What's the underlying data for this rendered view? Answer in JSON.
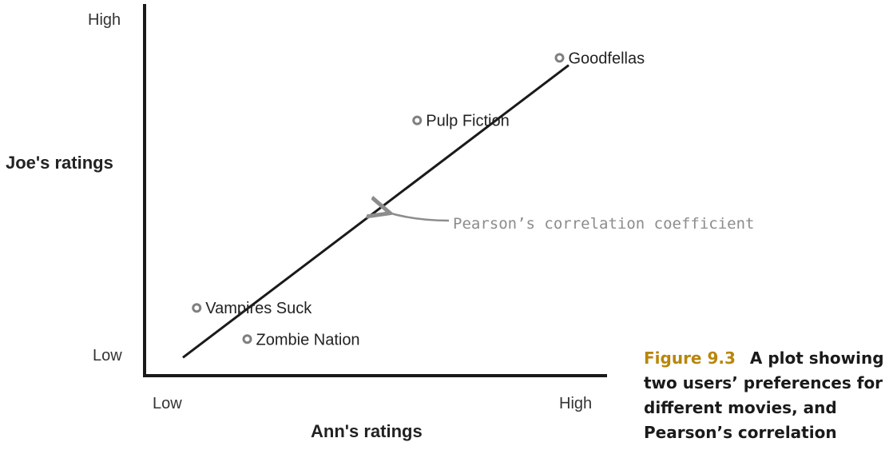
{
  "chart_data": {
    "type": "scatter",
    "xlabel": "Ann's ratings",
    "ylabel": "Joe's ratings",
    "x_ticks": [
      "Low",
      "High"
    ],
    "y_ticks": [
      "Low",
      "High"
    ],
    "xlim": [
      0,
      10
    ],
    "ylim": [
      0,
      10
    ],
    "points": [
      {
        "label": "Vampires Suck",
        "x": 1.1,
        "y": 1.8
      },
      {
        "label": "Zombie Nation",
        "x": 2.2,
        "y": 0.95
      },
      {
        "label": "Pulp Fiction",
        "x": 5.9,
        "y": 6.9
      },
      {
        "label": "Goodfellas",
        "x": 9.0,
        "y": 8.6
      }
    ],
    "trend_line": {
      "from": [
        0.8,
        0.45
      ],
      "to": [
        9.2,
        8.4
      ]
    },
    "annotation": "Pearson’s correlation coefficient",
    "grid": false
  },
  "caption": {
    "figure_number": "Figure 9.3",
    "text": "A plot showing two users’ preferences for different movies, and Pearson’s correlation"
  },
  "colors": {
    "axis": "#1a1a1a",
    "marker": "#808080",
    "annotation": "#8c8c8c",
    "figure_number": "#b8860b"
  }
}
